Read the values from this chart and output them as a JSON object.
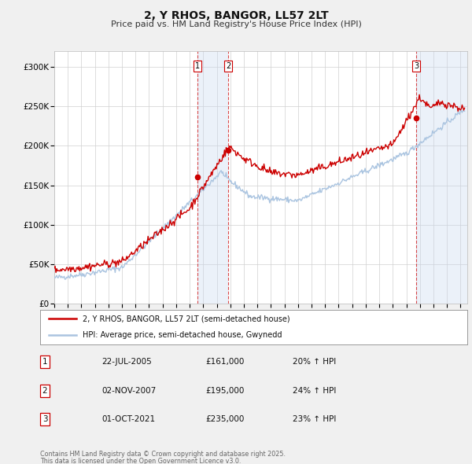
{
  "title": "2, Y RHOS, BANGOR, LL57 2LT",
  "subtitle": "Price paid vs. HM Land Registry's House Price Index (HPI)",
  "bg_color": "#f0f0f0",
  "plot_bg_color": "#ffffff",
  "grid_color": "#d0d0d0",
  "hpi_color": "#aac4e0",
  "price_color": "#cc0000",
  "ylim_max": 320000,
  "sale_events": [
    {
      "num": 1,
      "date": "2005-07-22",
      "price": 161000,
      "pct": "20%",
      "x_approx": 2005.56
    },
    {
      "num": 2,
      "date": "2007-11-02",
      "price": 195000,
      "pct": "24%",
      "x_approx": 2007.84
    },
    {
      "num": 3,
      "date": "2021-10-01",
      "price": 235000,
      "pct": "23%",
      "x_approx": 2021.75
    }
  ],
  "legend_label_price": "2, Y RHOS, BANGOR, LL57 2LT (semi-detached house)",
  "legend_label_hpi": "HPI: Average price, semi-detached house, Gwynedd",
  "footer": "Contains HM Land Registry data © Crown copyright and database right 2025.\nThis data is licensed under the Open Government Licence v3.0.",
  "xmin": 1995.0,
  "xmax": 2025.5,
  "yticks": [
    0,
    50000,
    100000,
    150000,
    200000,
    250000,
    300000
  ],
  "xticks": [
    1995,
    1996,
    1997,
    1998,
    1999,
    2000,
    2001,
    2002,
    2003,
    2004,
    2005,
    2006,
    2007,
    2008,
    2009,
    2010,
    2011,
    2012,
    2013,
    2014,
    2015,
    2016,
    2017,
    2018,
    2019,
    2020,
    2021,
    2022,
    2023,
    2024,
    2025
  ],
  "table_rows": [
    {
      "num": "1",
      "date": "22-JUL-2005",
      "price": "£161,000",
      "pct": "20% ↑ HPI"
    },
    {
      "num": "2",
      "date": "02-NOV-2007",
      "price": "£195,000",
      "pct": "24% ↑ HPI"
    },
    {
      "num": "3",
      "date": "01-OCT-2021",
      "price": "£235,000",
      "pct": "23% ↑ HPI"
    }
  ]
}
